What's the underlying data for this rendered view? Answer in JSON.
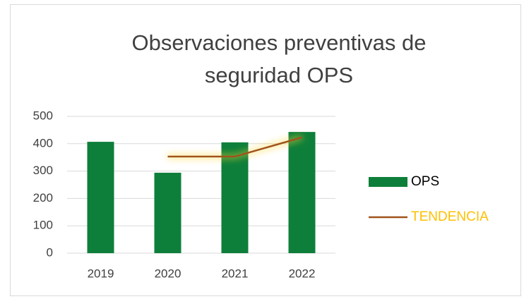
{
  "chart_data": {
    "type": "bar",
    "title": "Observaciones preventivas de seguridad OPS",
    "categories": [
      "2019",
      "2020",
      "2021",
      "2022"
    ],
    "series": [
      {
        "name": "OPS",
        "type": "bar",
        "color": "#0e7f3a",
        "values": [
          407,
          294,
          405,
          443
        ]
      },
      {
        "name": "TENDENCIA",
        "type": "line",
        "color": "#a0521a",
        "label_color": "#ffc000",
        "values": [
          null,
          353,
          353,
          423
        ]
      }
    ],
    "ylim": [
      0,
      500
    ],
    "yticks": [
      0,
      100,
      200,
      300,
      400,
      500
    ],
    "grid": true,
    "legend": "right"
  }
}
